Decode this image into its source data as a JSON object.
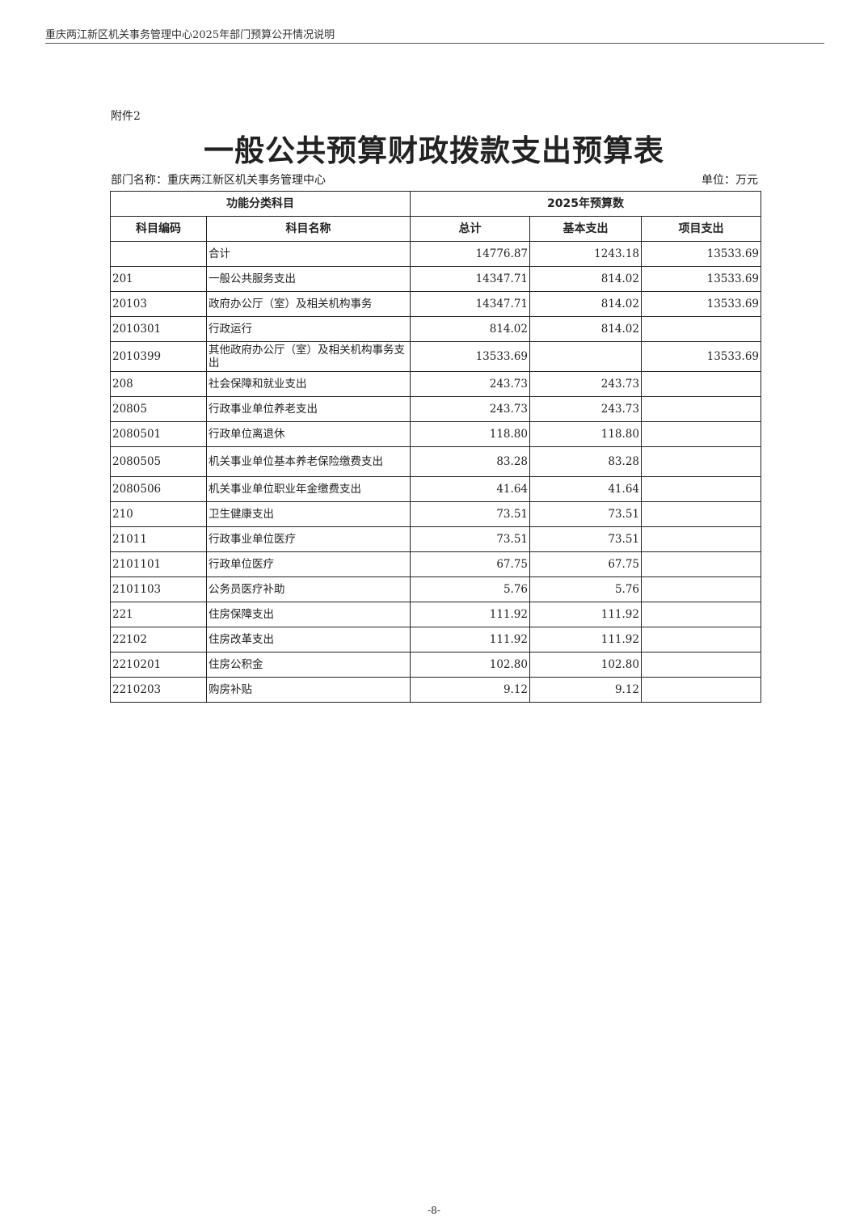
{
  "running_header": "重庆两江新区机关事务管理中心2025年部门预算公开情况说明",
  "attachment_label": "附件2",
  "title": "一般公共预算财政拨款支出预算表",
  "department": "部门名称：重庆两江新区机关事务管理中心",
  "unit": "单位：万元",
  "table": {
    "group_headers": [
      "功能分类科目",
      "2025年预算数"
    ],
    "columns": [
      "科目编码",
      "科目名称",
      "总计",
      "基本支出",
      "项目支出"
    ],
    "rows": [
      [
        "",
        "合计",
        "14776.87",
        "1243.18",
        "13533.69"
      ],
      [
        "201",
        "一般公共服务支出",
        "14347.71",
        "814.02",
        "13533.69"
      ],
      [
        "20103",
        "政府办公厅（室）及相关机构事务",
        "14347.71",
        "814.02",
        "13533.69"
      ],
      [
        "2010301",
        "行政运行",
        "814.02",
        "814.02",
        ""
      ],
      [
        "2010399",
        "其他政府办公厅（室）及相关机构事务支出",
        "13533.69",
        "",
        "13533.69"
      ],
      [
        "208",
        "社会保障和就业支出",
        "243.73",
        "243.73",
        ""
      ],
      [
        "20805",
        "行政事业单位养老支出",
        "243.73",
        "243.73",
        ""
      ],
      [
        "2080501",
        "行政单位离退休",
        "118.80",
        "118.80",
        ""
      ],
      [
        "2080505",
        "机关事业单位基本养老保险缴费支出",
        "83.28",
        "83.28",
        ""
      ],
      [
        "2080506",
        "机关事业单位职业年金缴费支出",
        "41.64",
        "41.64",
        ""
      ],
      [
        "210",
        "卫生健康支出",
        "73.51",
        "73.51",
        ""
      ],
      [
        "21011",
        "行政事业单位医疗",
        "73.51",
        "73.51",
        ""
      ],
      [
        "2101101",
        "行政单位医疗",
        "67.75",
        "67.75",
        ""
      ],
      [
        "2101103",
        "公务员医疗补助",
        "5.76",
        "5.76",
        ""
      ],
      [
        "221",
        "住房保障支出",
        "111.92",
        "111.92",
        ""
      ],
      [
        "22102",
        "住房改革支出",
        "111.92",
        "111.92",
        ""
      ],
      [
        "2210201",
        "住房公积金",
        "102.80",
        "102.80",
        ""
      ],
      [
        "2210203",
        "购房补贴",
        "9.12",
        "9.12",
        ""
      ]
    ]
  },
  "page_number": "-8-"
}
